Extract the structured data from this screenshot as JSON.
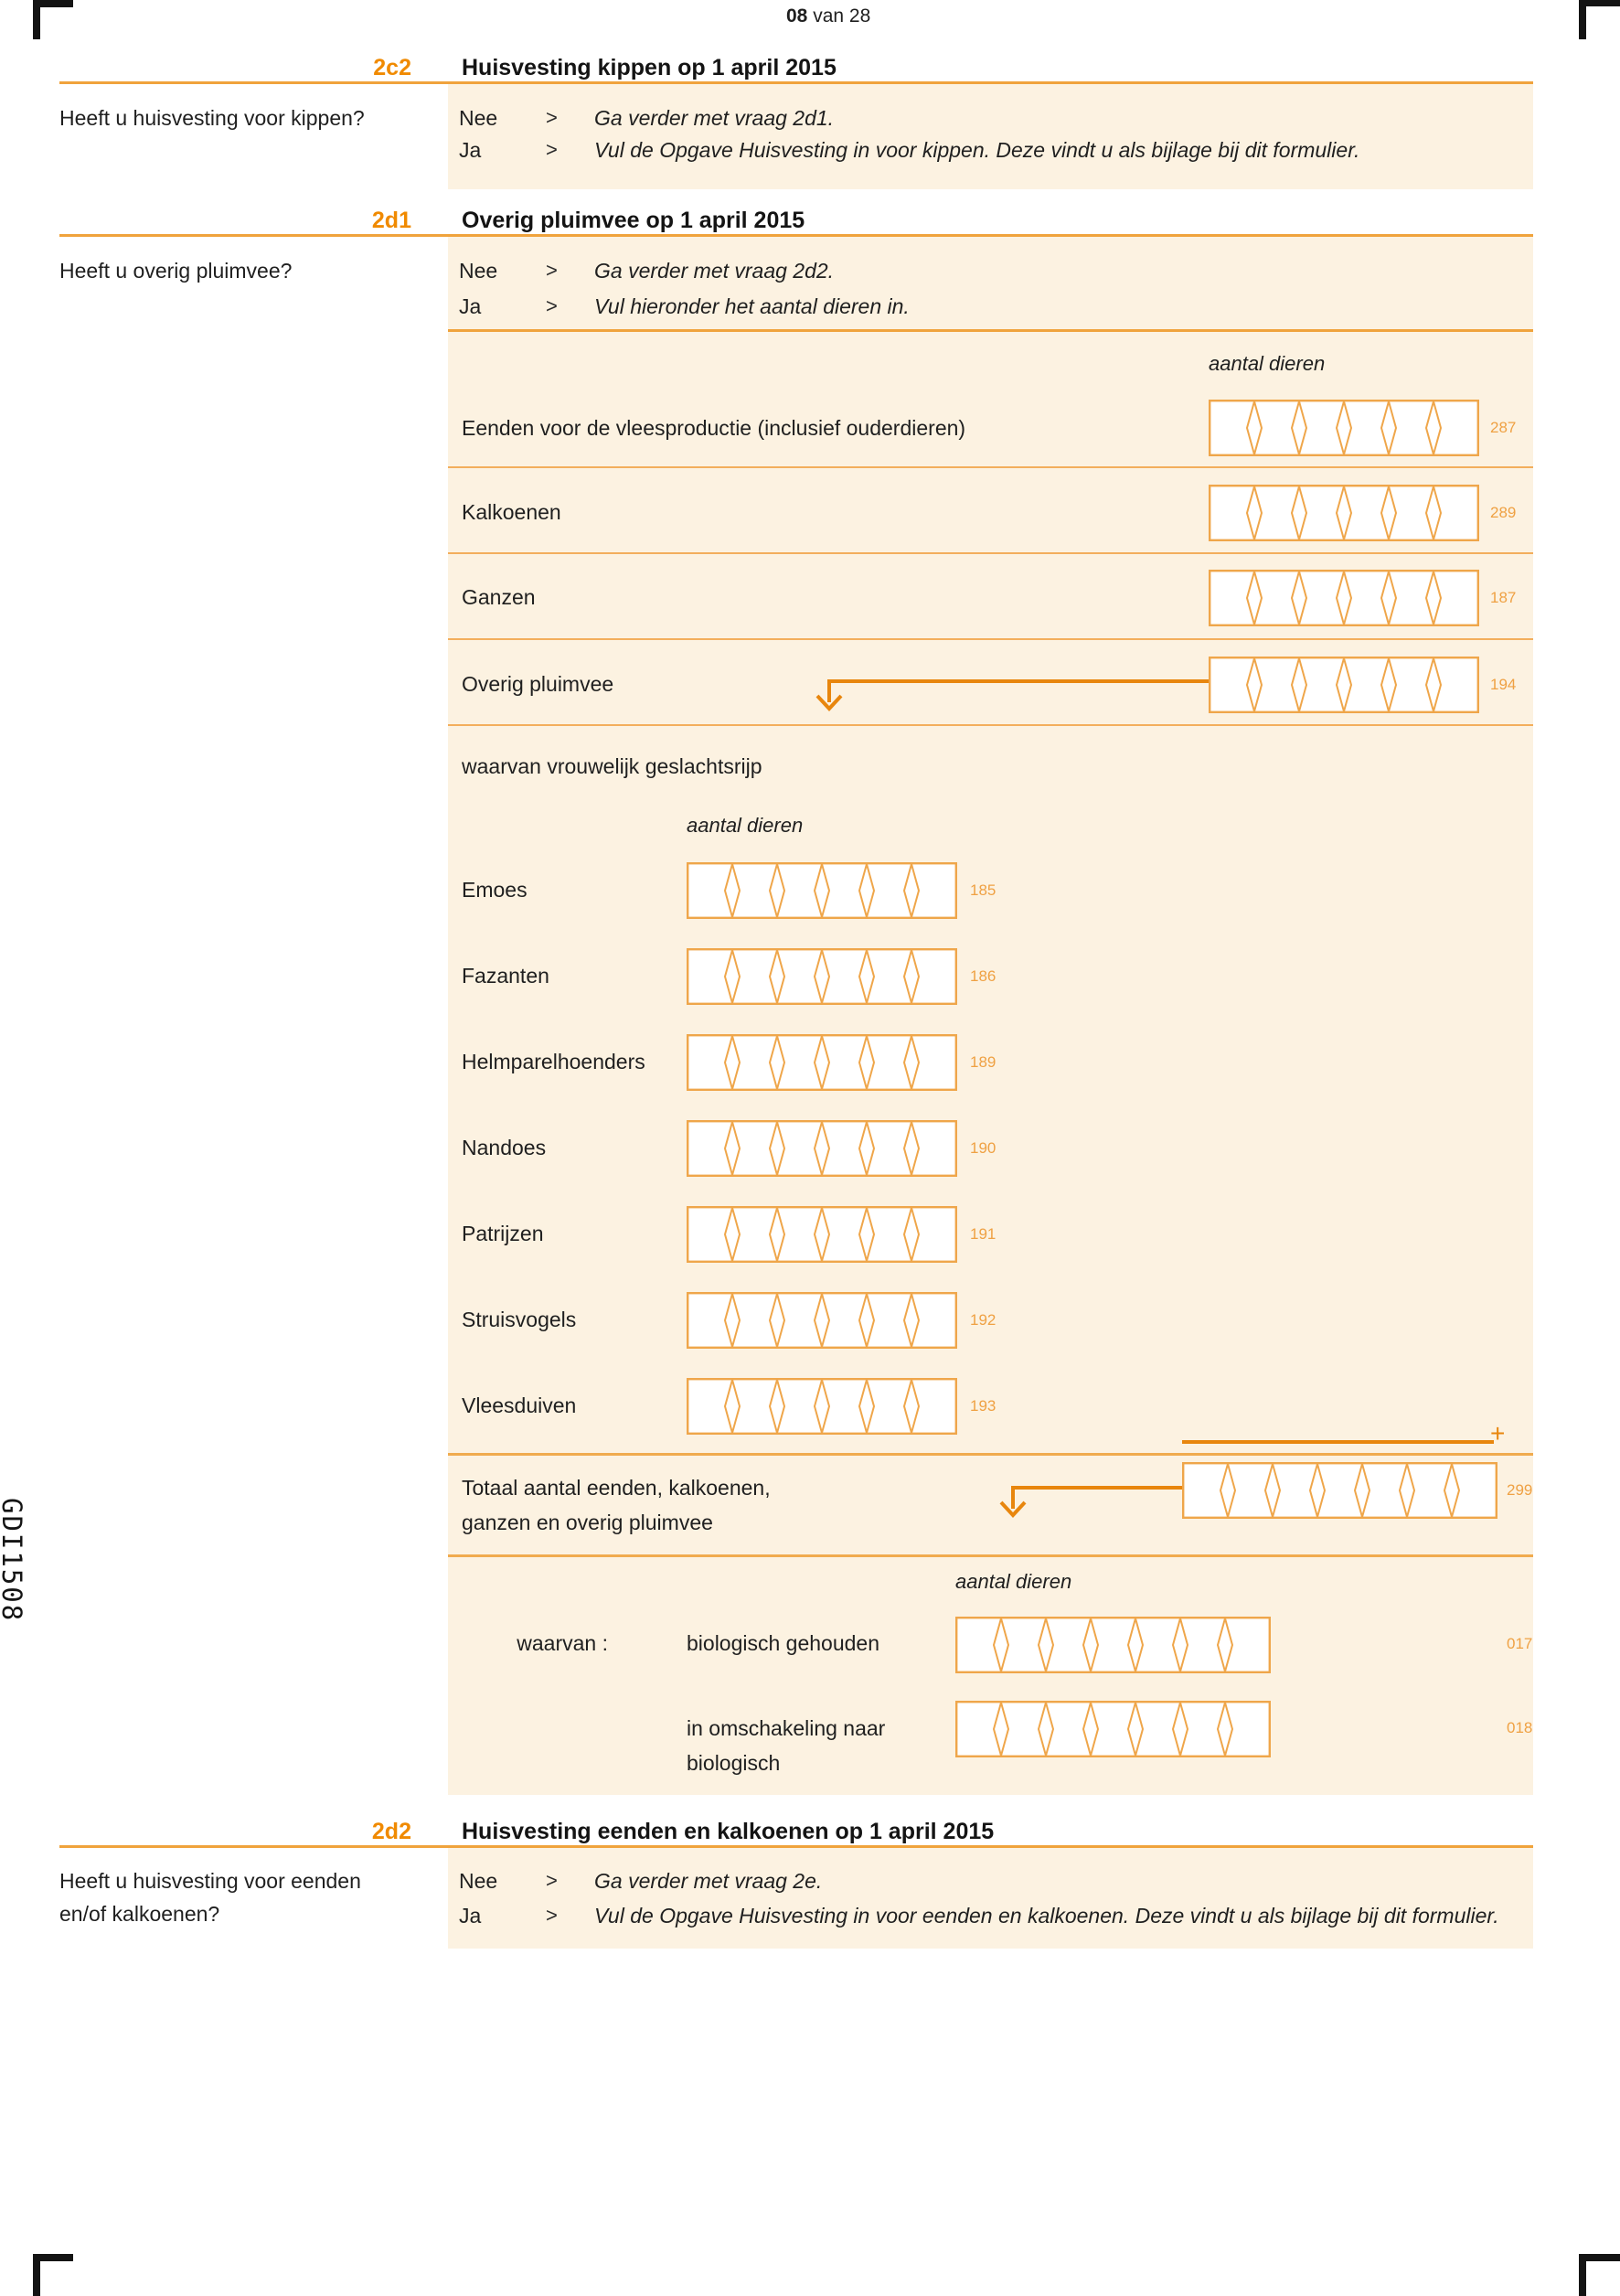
{
  "page": {
    "header_page_bold": "08",
    "header_page_rest": " van 28",
    "form_code": "GDI1508",
    "plus_sign": "+",
    "chevron": ">"
  },
  "colors": {
    "panel_bg": "#FCF2E1",
    "rule_strong": "#F0A33C",
    "rule_light": "#F3AE5C",
    "comb_border": "#EFA64A",
    "arrow": "#E8860D",
    "code_text": "#EFA143",
    "section_number": "#F08A00",
    "text": "#1f1f1f"
  },
  "sections": {
    "c2": {
      "number": "2c2",
      "title": "Huisvesting kippen op 1 april 2015",
      "question": "Heeft u huisvesting voor kippen?",
      "answers": [
        {
          "option": "Nee",
          "text": "Ga verder met vraag 2d1."
        },
        {
          "option": "Ja",
          "text": "Vul de Opgave Huisvesting in voor kippen. Deze vindt u als bijlage bij dit formulier."
        }
      ]
    },
    "d1": {
      "number": "2d1",
      "title": "Overig pluimvee op 1 april 2015",
      "question": "Heeft u overig pluimvee?",
      "answers": [
        {
          "option": "Nee",
          "text": "Ga verder met vraag 2d2."
        },
        {
          "option": "Ja",
          "text": "Vul hieronder het aantal dieren in."
        }
      ],
      "col_header": "aantal dieren",
      "rows": [
        {
          "label": "Eenden voor de vleesproductie (inclusief ouderdieren)",
          "code": "287",
          "value": ""
        },
        {
          "label": "Kalkoenen",
          "code": "289",
          "value": ""
        },
        {
          "label": "Ganzen",
          "code": "187",
          "value": ""
        },
        {
          "label": "Overig pluimvee",
          "code": "194",
          "value": ""
        }
      ],
      "sub_heading": "waarvan vrouwelijk geslachtsrijp",
      "sub_col_header": "aantal dieren",
      "sub_rows": [
        {
          "label": "Emoes",
          "code": "185",
          "value": ""
        },
        {
          "label": "Fazanten",
          "code": "186",
          "value": ""
        },
        {
          "label": "Helmparelhoenders",
          "code": "189",
          "value": ""
        },
        {
          "label": "Nandoes",
          "code": "190",
          "value": ""
        },
        {
          "label": "Patrijzen",
          "code": "191",
          "value": ""
        },
        {
          "label": "Struisvogels",
          "code": "192",
          "value": ""
        },
        {
          "label": "Vleesduiven",
          "code": "193",
          "value": ""
        }
      ],
      "total": {
        "label_line1": "Totaal aantal eenden, kalkoenen,",
        "label_line2": "ganzen en overig pluimvee",
        "code": "299",
        "value": ""
      },
      "waarvan": {
        "col_header": "aantal dieren",
        "prefix": "waarvan :",
        "rows": [
          {
            "label": "biologisch gehouden",
            "code": "017",
            "value": ""
          },
          {
            "label_line1": "in omschakeling naar",
            "label_line2": "biologisch",
            "code": "018",
            "value": ""
          }
        ]
      }
    },
    "d2": {
      "number": "2d2",
      "title": "Huisvesting eenden en kalkoenen op 1 april 2015",
      "question_line1": "Heeft u huisvesting voor eenden",
      "question_line2": "en/of kalkoenen?",
      "answers": [
        {
          "option": "Nee",
          "text": "Ga verder met vraag 2e."
        },
        {
          "option": "Ja",
          "text": "Vul de Opgave Huisvesting in voor eenden en kalkoenen. Deze vindt u als bijlage bij dit formulier."
        }
      ]
    }
  }
}
